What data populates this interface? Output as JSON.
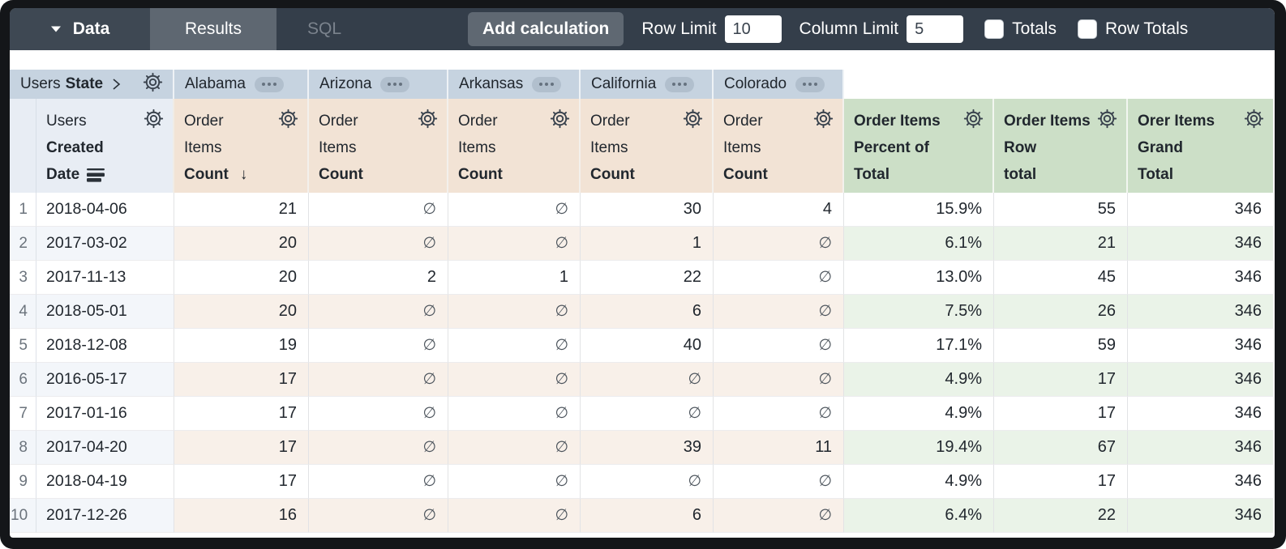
{
  "toolbar": {
    "data_tab": "Data",
    "results_tab": "Results",
    "sql_tab": "SQL",
    "add_calculation": "Add calculation",
    "row_limit_label": "Row Limit",
    "row_limit_value": "10",
    "column_limit_label": "Column Limit",
    "column_limit_value": "5",
    "totals_label": "Totals",
    "totals_checked": false,
    "row_totals_label": "Row Totals",
    "row_totals_checked": false
  },
  "pivot": {
    "dimension": {
      "prefix": "Users",
      "name": "State"
    },
    "states": [
      "Alabama",
      "Arizona",
      "Arkansas",
      "California",
      "Colorado"
    ]
  },
  "row_dimension": {
    "lines": [
      "Users",
      "Created",
      "Date"
    ]
  },
  "measure": {
    "lines": [
      "Order",
      "Items",
      "Count"
    ],
    "sorted_arrow": "↓",
    "sorted_state_index": 0
  },
  "calc_columns": [
    {
      "lines": [
        "Order Items",
        "Percent of",
        "Total"
      ]
    },
    {
      "lines": [
        "Order Items",
        "Row",
        "total"
      ]
    },
    {
      "lines": [
        "Orer Items",
        "Grand",
        "Total"
      ]
    }
  ],
  "null_symbol": "∅",
  "rows": [
    {
      "num": "1",
      "date": "2018-04-06",
      "state_values": [
        "21",
        null,
        null,
        "30",
        "4"
      ],
      "percent_of_total": "15.9%",
      "row_total": "55",
      "grand_total": "346"
    },
    {
      "num": "2",
      "date": "2017-03-02",
      "state_values": [
        "20",
        null,
        null,
        "1",
        null
      ],
      "percent_of_total": "6.1%",
      "row_total": "21",
      "grand_total": "346"
    },
    {
      "num": "3",
      "date": "2017-11-13",
      "state_values": [
        "20",
        "2",
        "1",
        "22",
        null
      ],
      "percent_of_total": "13.0%",
      "row_total": "45",
      "grand_total": "346"
    },
    {
      "num": "4",
      "date": "2018-05-01",
      "state_values": [
        "20",
        null,
        null,
        "6",
        null
      ],
      "percent_of_total": "7.5%",
      "row_total": "26",
      "grand_total": "346"
    },
    {
      "num": "5",
      "date": "2018-12-08",
      "state_values": [
        "19",
        null,
        null,
        "40",
        null
      ],
      "percent_of_total": "17.1%",
      "row_total": "59",
      "grand_total": "346"
    },
    {
      "num": "6",
      "date": "2016-05-17",
      "state_values": [
        "17",
        null,
        null,
        null,
        null
      ],
      "percent_of_total": "4.9%",
      "row_total": "17",
      "grand_total": "346"
    },
    {
      "num": "7",
      "date": "2017-01-16",
      "state_values": [
        "17",
        null,
        null,
        null,
        null
      ],
      "percent_of_total": "4.9%",
      "row_total": "17",
      "grand_total": "346"
    },
    {
      "num": "8",
      "date": "2017-04-20",
      "state_values": [
        "17",
        null,
        null,
        "39",
        "11"
      ],
      "percent_of_total": "19.4%",
      "row_total": "67",
      "grand_total": "346"
    },
    {
      "num": "9",
      "date": "2018-04-19",
      "state_values": [
        "17",
        null,
        null,
        null,
        null
      ],
      "percent_of_total": "4.9%",
      "row_total": "17",
      "grand_total": "346"
    },
    {
      "num": "10",
      "date": "2017-12-26",
      "state_values": [
        "16",
        null,
        null,
        "6",
        null
      ],
      "percent_of_total": "6.4%",
      "row_total": "22",
      "grand_total": "346"
    }
  ],
  "colors": {
    "frame_bg": "#141619",
    "topbar_bg": "#343e4a",
    "data_tab_bg": "#3e4853",
    "results_tab_bg": "#5e6771",
    "button_bg": "#5f6872",
    "pivot_header_bg": "#c6d3e0",
    "dimension_header_bg": "#e8edf4",
    "measure_header_bg": "#f2e3d5",
    "calc_header_bg": "#ccdfc7",
    "stripe_dimension": "#f3f6fa",
    "stripe_measure": "#f8f0e9",
    "stripe_calc": "#eaf3e8"
  }
}
